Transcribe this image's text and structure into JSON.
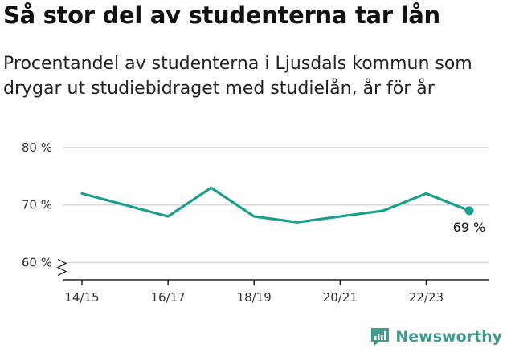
{
  "title": "Så stor del av studenterna tar lån",
  "subtitle": "Procentandel av studenterna i Ljusdals kommun som drygar ut studiebidraget med studielån, år för år",
  "brand": {
    "name": "Newsworthy",
    "icon": "newsworthy-logo-icon",
    "color": "#3f9a8f"
  },
  "chart_data": {
    "type": "line",
    "x": [
      "14/15",
      "15/16",
      "16/17",
      "17/18",
      "18/19",
      "19/20",
      "20/21",
      "21/22",
      "22/23",
      "23/24"
    ],
    "x_tick_labels": [
      "14/15",
      "16/17",
      "18/19",
      "20/21",
      "22/23"
    ],
    "series": [
      {
        "values": [
          72,
          70,
          68,
          73,
          68,
          67,
          68,
          69,
          72,
          69
        ],
        "color": "#1a9e8f"
      }
    ],
    "y_ticks": [
      {
        "value": 60,
        "label": "60 %"
      },
      {
        "value": 70,
        "label": "70 %"
      },
      {
        "value": 80,
        "label": "80 %"
      }
    ],
    "ylim": [
      57,
      80
    ],
    "axis_break": true,
    "grid": true,
    "last_point_label": "69 %"
  }
}
